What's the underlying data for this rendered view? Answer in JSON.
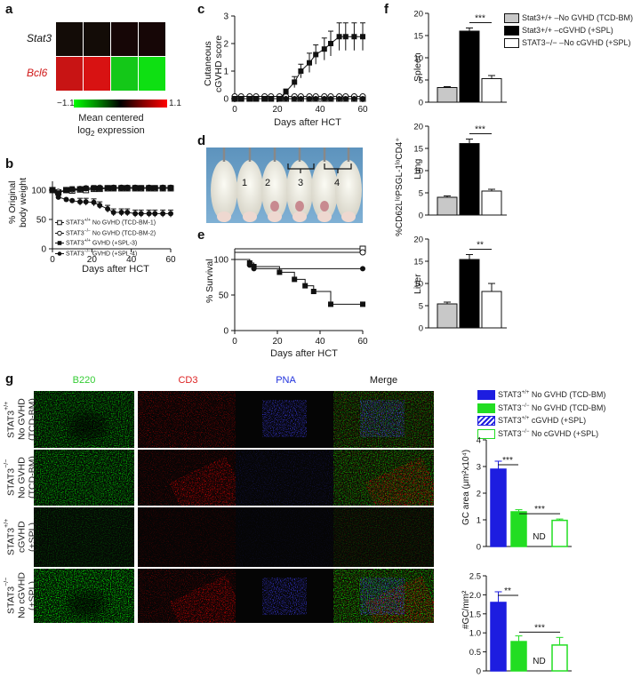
{
  "panel_labels": [
    "a",
    "b",
    "c",
    "d",
    "e",
    "f",
    "g"
  ],
  "heatmap": {
    "genes": [
      "Stat3",
      "Bcl6"
    ],
    "gene_colors": [
      "#111111",
      "#d01818"
    ],
    "cells": [
      [
        "#130c07",
        "#130c07",
        "#160606",
        "#160606"
      ],
      [
        "#c81414",
        "#d81212",
        "#14c818",
        "#0ee012"
      ]
    ],
    "scale_min": "−1.1",
    "scale_max": "1.1",
    "legend_line1": "Mean centered",
    "legend_line2": "log",
    "legend_sub": "2",
    "legend_line3": " expression",
    "gradient": [
      "#00ff00",
      "#008800",
      "#000000",
      "#880000",
      "#ff0000"
    ]
  },
  "chart_data": [
    {
      "id": "b",
      "type": "line",
      "xlabel": "Days after HCT",
      "ylabel": "% Original body weight",
      "ylabel_lines": [
        "% Original",
        "body weight"
      ],
      "xlim": [
        0,
        60
      ],
      "ylim": [
        0,
        115
      ],
      "xticks": [
        0,
        20,
        40,
        60
      ],
      "yticks": [
        0,
        50,
        100
      ],
      "x": [
        0,
        3,
        7,
        10,
        14,
        17,
        21,
        24,
        28,
        31,
        35,
        38,
        42,
        45,
        49,
        52,
        56,
        60
      ],
      "series": [
        {
          "name": "STAT3+/+ No GVHD (TCD-BM-1)",
          "marker": "square-open",
          "values": [
            100,
            96,
            100,
            99,
            101,
            100,
            102,
            102,
            103,
            103,
            103,
            103,
            103,
            103,
            103,
            103,
            103,
            103
          ]
        },
        {
          "name": "STAT3−/− No GVHD (TCD-BM-2)",
          "marker": "circle-open",
          "values": [
            100,
            97,
            100,
            101,
            102,
            103,
            103,
            104,
            103,
            104,
            104,
            104,
            104,
            103,
            104,
            103,
            104,
            104
          ]
        },
        {
          "name": "STAT3+/+ GVHD (+SPL-3)",
          "marker": "square",
          "values": [
            100,
            95,
            100,
            102,
            102,
            103,
            104,
            103,
            104,
            104,
            104,
            104,
            104,
            104,
            104,
            104,
            104,
            104
          ]
        },
        {
          "name": "STAT3−/− GVHD (+SPL-4)",
          "marker": "circle",
          "values": [
            100,
            88,
            84,
            82,
            80,
            80,
            79,
            74,
            68,
            62,
            62,
            62,
            60,
            60,
            60,
            60,
            60,
            60
          ]
        }
      ],
      "legend_items": [
        {
          "sup": "+/+",
          "text": " No GVHD (TCD-BM-1)"
        },
        {
          "sup": "−/−",
          "text": " No GVHD (TCD-BM-2)"
        },
        {
          "sup": "+/+",
          "text": " GVHD (+SPL-3)"
        },
        {
          "sup": "−/−",
          "text": " GVHD (+SPL-4)"
        }
      ],
      "legend_prefix": "STAT3"
    },
    {
      "id": "c",
      "type": "line",
      "xlabel": "Days after HCT",
      "ylabel": "Cutaneous cGVHD score",
      "ylabel_lines": [
        "Cutaneous",
        "cGVHD score"
      ],
      "xlim": [
        0,
        60
      ],
      "ylim": [
        0,
        3
      ],
      "xticks": [
        0,
        20,
        40,
        60
      ],
      "yticks": [
        0,
        1,
        2,
        3
      ],
      "x": [
        0,
        3,
        7,
        10,
        14,
        17,
        21,
        24,
        28,
        31,
        35,
        38,
        42,
        45,
        49,
        52,
        56,
        60
      ],
      "series": [
        {
          "name": "STAT3+/+ No GVHD",
          "marker": "square-open",
          "values": [
            0,
            0,
            0,
            0,
            0,
            0,
            0,
            0,
            0,
            0,
            0,
            0,
            0,
            0,
            0,
            0,
            0,
            0
          ]
        },
        {
          "name": "STAT3−/− No GVHD",
          "marker": "circle-open",
          "values": [
            0.08,
            0.08,
            0.08,
            0.08,
            0.08,
            0.08,
            0.08,
            0.08,
            0.08,
            0.08,
            0.08,
            0.08,
            0.08,
            0.08,
            0.08,
            0.08,
            0.08,
            0.08
          ]
        },
        {
          "name": "STAT3+/+ cGVHD",
          "marker": "square",
          "values": [
            0,
            0,
            0,
            0,
            0,
            0,
            0,
            0.25,
            0.6,
            1.0,
            1.3,
            1.6,
            1.8,
            2.0,
            2.25,
            2.25,
            2.25,
            2.25
          ]
        },
        {
          "name": "STAT3−/− cGVHD",
          "marker": "circle",
          "values": [
            0,
            0,
            0,
            0,
            0,
            0,
            0,
            0,
            0,
            0,
            0,
            0,
            0,
            0,
            0,
            0,
            0,
            0
          ]
        }
      ],
      "errors": [
        null,
        null,
        [
          0,
          0,
          0,
          0,
          0,
          0,
          0,
          0.1,
          0.2,
          0.25,
          0.35,
          0.35,
          0.4,
          0.45,
          0.5,
          0.5,
          0.5,
          0.5
        ],
        null
      ]
    },
    {
      "id": "e",
      "type": "line",
      "xlabel": "Days after HCT",
      "ylabel": "% Survival",
      "xlim": [
        0,
        60
      ],
      "ylim": [
        0,
        115
      ],
      "xticks": [
        0,
        20,
        40,
        60
      ],
      "yticks": [
        0,
        50,
        100
      ],
      "series": [
        {
          "name": "STAT3+/+ No GVHD",
          "marker": "square-open",
          "steps": [
            [
              0,
              115
            ],
            [
              60,
              115
            ]
          ]
        },
        {
          "name": "STAT3−/− No GVHD",
          "marker": "circle-open",
          "steps": [
            [
              0,
              110
            ],
            [
              60,
              110
            ]
          ]
        },
        {
          "name": "STAT3+/+ cGVHD",
          "marker": "square",
          "steps": [
            [
              0,
              100
            ],
            [
              7,
              100
            ],
            [
              7,
              95
            ],
            [
              9,
              95
            ],
            [
              9,
              90
            ],
            [
              21,
              90
            ],
            [
              21,
              82
            ],
            [
              28,
              82
            ],
            [
              28,
              72
            ],
            [
              33,
              72
            ],
            [
              33,
              63
            ],
            [
              37,
              63
            ],
            [
              37,
              55
            ],
            [
              45,
              55
            ],
            [
              45,
              37
            ],
            [
              60,
              37
            ]
          ]
        },
        {
          "name": "STAT3−/− cGVHD",
          "marker": "circle",
          "steps": [
            [
              0,
              100
            ],
            [
              7,
              100
            ],
            [
              7,
              92
            ],
            [
              9,
              92
            ],
            [
              9,
              87
            ],
            [
              60,
              87
            ]
          ]
        }
      ]
    },
    {
      "id": "f",
      "type": "bar",
      "ylabel": "%CD62LˡᵒPSGL-1ˡᵒCD4⁺",
      "legend": [
        {
          "text": "Stat3+/+ –No GVHD (TCD-BM)",
          "fill": "#c8c8c8"
        },
        {
          "text": "Stat3+/+ –cGVHD (+SPL)",
          "fill": "#000000"
        },
        {
          "text": "STAT3−/− –No cGVHD (+SPL)",
          "fill": "#ffffff"
        }
      ],
      "fills": [
        "#c8c8c8",
        "#000000",
        "#ffffff"
      ],
      "ylim": [
        0,
        20
      ],
      "yticks": [
        0,
        5,
        10,
        15,
        20
      ],
      "panels": [
        {
          "organ": "Spleen",
          "values": [
            3.3,
            16.0,
            5.3
          ],
          "errors": [
            0.2,
            0.7,
            0.7
          ],
          "sig": "***"
        },
        {
          "organ": "Lung",
          "values": [
            4.0,
            16.1,
            5.4
          ],
          "errors": [
            0.3,
            1.0,
            0.4
          ],
          "sig": "***"
        },
        {
          "organ": "Liver",
          "values": [
            5.4,
            15.4,
            8.2
          ],
          "errors": [
            0.4,
            1.1,
            1.8
          ],
          "sig": "**"
        }
      ]
    },
    {
      "id": "g-area",
      "type": "bar",
      "ylabel": "GC area (μm²x10⁴)",
      "categories": [
        "STAT3+/+ No GVHD (TCD-BM)",
        "STAT3−/− No GVHD (TCD-BM)",
        "STAT3+/+ cGVHD (+SPL)",
        "STAT3−/− No cGVHD (+SPL)"
      ],
      "values": [
        2.9,
        1.3,
        0,
        0.98
      ],
      "errors": [
        0.3,
        0.08,
        0,
        0.05
      ],
      "ylim": [
        0,
        4
      ],
      "yticks": [
        0,
        1,
        2,
        3,
        4
      ],
      "nd_label": "ND",
      "sig": [
        "***",
        "***"
      ]
    },
    {
      "id": "g-count",
      "type": "bar",
      "ylabel": "#GC/mm²",
      "categories": [
        "STAT3+/+ No GVHD (TCD-BM)",
        "STAT3−/− No GVHD (TCD-BM)",
        "STAT3+/+ cGVHD (+SPL)",
        "STAT3−/− No cGVHD (+SPL)"
      ],
      "values": [
        1.8,
        0.77,
        0,
        0.68
      ],
      "errors": [
        0.28,
        0.15,
        0,
        0.2
      ],
      "ylim": [
        0,
        2.5
      ],
      "yticks": [
        "0",
        "0.5",
        "1.0",
        "1.5",
        "2.0",
        "2.5"
      ],
      "nd_label": "ND",
      "sig": [
        "**",
        "***"
      ]
    }
  ],
  "g_legend": {
    "items": [
      {
        "sup": "+/+",
        "text": " No GVHD (TCD-BM)",
        "style": "solid-blue"
      },
      {
        "sup": "−/−",
        "text": " No GVHD (TCD-BM)",
        "style": "solid-green"
      },
      {
        "sup": "+/+",
        "text": " cGVHD (+SPL)",
        "style": "hatched-blue"
      },
      {
        "sup": "−/−",
        "text": " No cGVHD (+SPL)",
        "style": "open-green"
      }
    ],
    "prefix": "STAT3",
    "colors": {
      "blue": "#1d1de0",
      "green": "#22dd22"
    }
  },
  "photo_d": {
    "mouse_labels": [
      "1",
      "2",
      "3",
      "4"
    ]
  },
  "micro": {
    "columns": [
      {
        "label": "B220",
        "color": "#33cc33"
      },
      {
        "label": "CD3",
        "color": "#dd2222"
      },
      {
        "label": "PNA",
        "color": "#2233dd"
      },
      {
        "label": "Merge",
        "color": "#111111"
      }
    ],
    "rows": [
      {
        "pre": "STAT3",
        "sup": "+/+",
        "line2": "No GVHD",
        "line3": "(TCD-BM)"
      },
      {
        "pre": "STAT3",
        "sup": "−/−",
        "line2": "No GVHD",
        "line3": "(TCD-BM)"
      },
      {
        "pre": "STAT3",
        "sup": "+/+",
        "line2": "cGVHD",
        "line3": "(+SPL)"
      },
      {
        "pre": "STAT3",
        "sup": "−/−",
        "line2": "No cGVHD",
        "line3": "(+SPL)"
      }
    ]
  }
}
